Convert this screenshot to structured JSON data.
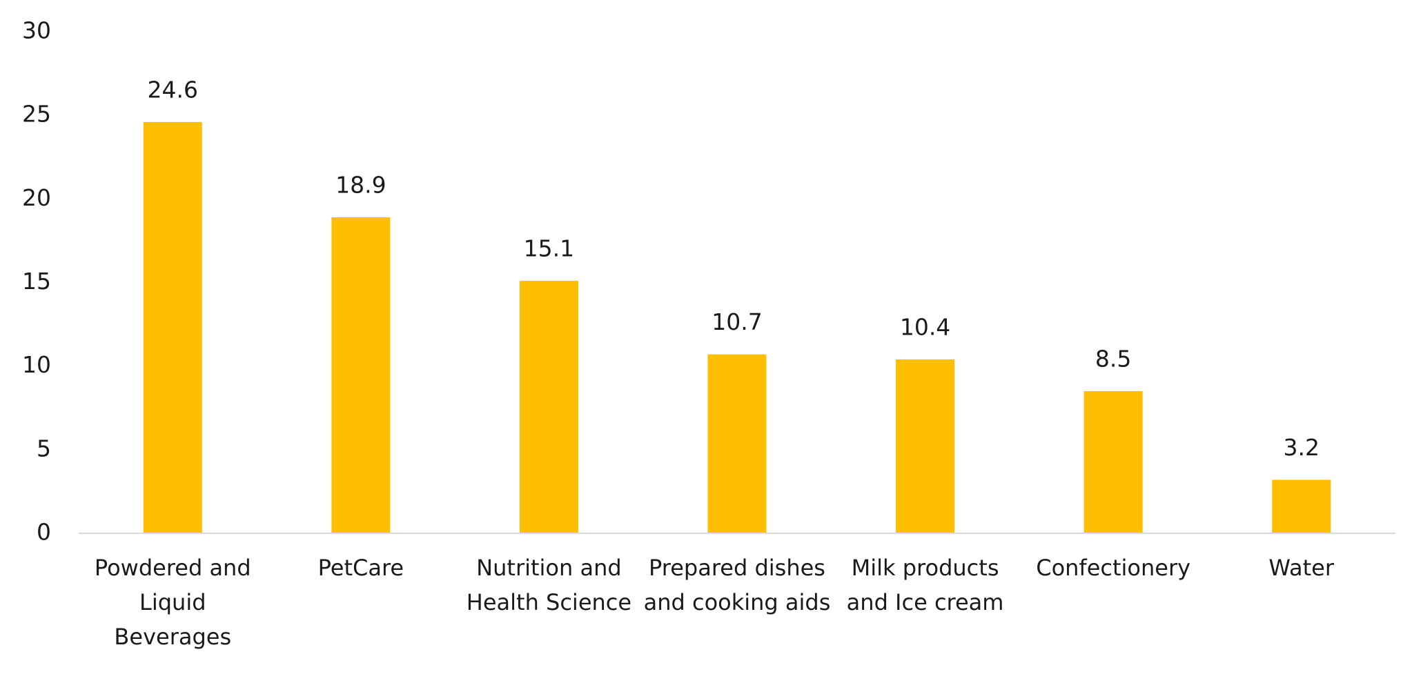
{
  "chart_data": {
    "type": "bar",
    "categories": [
      "Powdered and Liquid Beverages",
      "PetCare",
      "Nutrition and Health Science",
      "Prepared dishes and cooking aids",
      "Milk products and Ice cream",
      "Confectionery",
      "Water"
    ],
    "values": [
      24.6,
      18.9,
      15.1,
      10.7,
      10.4,
      8.5,
      3.2
    ],
    "color": "#fdbf00",
    "ylim": [
      0,
      30
    ],
    "yticks": [
      0,
      5,
      10,
      15,
      20,
      25,
      30
    ],
    "grid": false
  }
}
